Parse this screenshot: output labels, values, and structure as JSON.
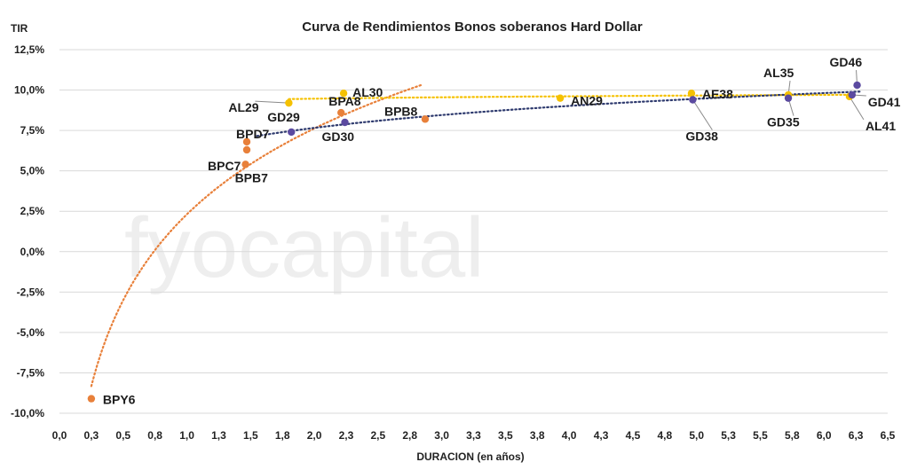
{
  "chart_data": {
    "type": "scatter",
    "title": "Curva de Rendimientos Bonos soberanos Hard Dollar",
    "xlabel": "DURACION (en años)",
    "ylabel": "TIR",
    "watermark": "fyocapital",
    "xlim": [
      0,
      6.5
    ],
    "ylim": [
      -10,
      12.5
    ],
    "x_ticks": [
      {
        "value": 0.0,
        "label": "0,0"
      },
      {
        "value": 0.25,
        "label": "0,3"
      },
      {
        "value": 0.5,
        "label": "0,5"
      },
      {
        "value": 0.75,
        "label": "0,8"
      },
      {
        "value": 1.0,
        "label": "1,0"
      },
      {
        "value": 1.25,
        "label": "1,3"
      },
      {
        "value": 1.5,
        "label": "1,5"
      },
      {
        "value": 1.75,
        "label": "1,8"
      },
      {
        "value": 2.0,
        "label": "2,0"
      },
      {
        "value": 2.25,
        "label": "2,3"
      },
      {
        "value": 2.5,
        "label": "2,5"
      },
      {
        "value": 2.75,
        "label": "2,8"
      },
      {
        "value": 3.0,
        "label": "3,0"
      },
      {
        "value": 3.25,
        "label": "3,3"
      },
      {
        "value": 3.5,
        "label": "3,5"
      },
      {
        "value": 3.75,
        "label": "3,8"
      },
      {
        "value": 4.0,
        "label": "4,0"
      },
      {
        "value": 4.25,
        "label": "4,3"
      },
      {
        "value": 4.5,
        "label": "4,5"
      },
      {
        "value": 4.75,
        "label": "4,8"
      },
      {
        "value": 5.0,
        "label": "5,0"
      },
      {
        "value": 5.25,
        "label": "5,3"
      },
      {
        "value": 5.5,
        "label": "5,5"
      },
      {
        "value": 5.75,
        "label": "5,8"
      },
      {
        "value": 6.0,
        "label": "6,0"
      },
      {
        "value": 6.25,
        "label": "6,3"
      },
      {
        "value": 6.5,
        "label": "6,5"
      }
    ],
    "y_ticks": [
      {
        "value": 12.5,
        "label": "12,5%"
      },
      {
        "value": 10.0,
        "label": "10,0%"
      },
      {
        "value": 7.5,
        "label": "7,5%"
      },
      {
        "value": 5.0,
        "label": "5,0%"
      },
      {
        "value": 2.5,
        "label": "2,5%"
      },
      {
        "value": 0.0,
        "label": "0,0%"
      },
      {
        "value": -2.5,
        "label": "-2,5%"
      },
      {
        "value": -5.0,
        "label": "-5,0%"
      },
      {
        "value": -7.5,
        "label": "-7,5%"
      },
      {
        "value": -10.0,
        "label": "-10,0%"
      }
    ],
    "grid": true,
    "series": [
      {
        "color": "#e8803a",
        "trend": {
          "style": "dotted",
          "x_range": [
            0.25,
            2.85
          ]
        },
        "points": [
          {
            "label": "BPY6",
            "x": 0.25,
            "y": -9.1
          },
          {
            "label": "BPB7",
            "x": 1.46,
            "y": 5.4
          },
          {
            "label": "BPC7",
            "x": 1.47,
            "y": 6.3
          },
          {
            "label": "BPD7",
            "x": 1.47,
            "y": 6.8
          },
          {
            "label": "BPA8",
            "x": 2.21,
            "y": 8.6
          },
          {
            "label": "BPB8",
            "x": 2.87,
            "y": 8.2
          }
        ]
      },
      {
        "color": "#f5c100",
        "trend": {
          "style": "dotted",
          "x_range": [
            1.8,
            6.25
          ]
        },
        "points": [
          {
            "label": "AL29",
            "x": 1.8,
            "y": 9.2
          },
          {
            "label": "AL30",
            "x": 2.23,
            "y": 9.8
          },
          {
            "label": "AN29",
            "x": 3.93,
            "y": 9.5
          },
          {
            "label": "AE38",
            "x": 4.96,
            "y": 9.8
          },
          {
            "label": "AL35",
            "x": 5.72,
            "y": 9.7
          },
          {
            "label": "AL41",
            "x": 6.2,
            "y": 9.6
          }
        ]
      },
      {
        "color": "#5b4aa0",
        "trend": {
          "style": "dotted",
          "color": "#2e3a6e",
          "x_range": [
            1.55,
            6.28
          ]
        },
        "points": [
          {
            "label": "GD29",
            "x": 1.82,
            "y": 7.4
          },
          {
            "label": "GD30",
            "x": 2.24,
            "y": 8.0
          },
          {
            "label": "GD38",
            "x": 4.97,
            "y": 9.4
          },
          {
            "label": "GD35",
            "x": 5.72,
            "y": 9.5
          },
          {
            "label": "GD41",
            "x": 6.22,
            "y": 9.7
          },
          {
            "label": "GD46",
            "x": 6.26,
            "y": 10.3
          }
        ]
      }
    ]
  }
}
